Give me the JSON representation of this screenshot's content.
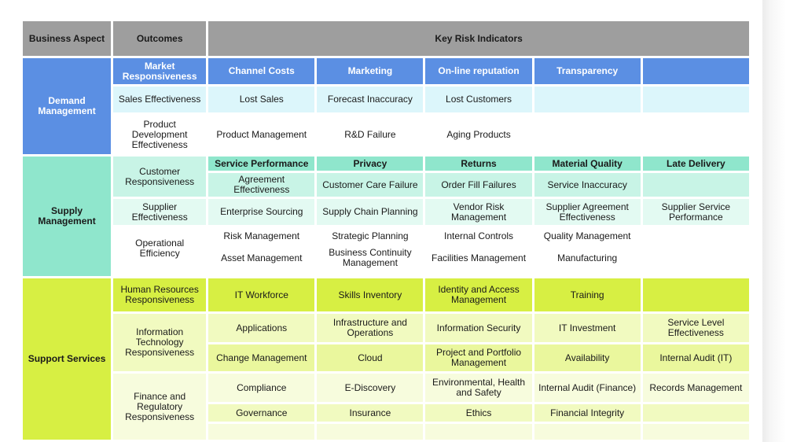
{
  "header": {
    "business_aspect": "Business Aspect",
    "outcomes": "Outcomes",
    "kri": "Key Risk Indicators"
  },
  "demand": {
    "aspect": "Demand Management",
    "rows": [
      {
        "outcome": "Market Responsiveness",
        "cells": [
          "Channel Costs",
          "Marketing",
          "On-line reputation",
          "Transparency",
          ""
        ]
      },
      {
        "outcome": "Sales Effectiveness",
        "cells": [
          "Lost Sales",
          "Forecast Inaccuracy",
          "Lost Customers",
          "",
          ""
        ]
      },
      {
        "outcome": "Product Development Effectiveness",
        "cells": [
          "Product Management",
          "R&D Failure",
          "Aging Products",
          "",
          ""
        ]
      }
    ]
  },
  "supply": {
    "aspect": "Supply Management",
    "customer": {
      "outcome": "Customer Responsiveness",
      "row1": [
        "Service Performance",
        "Privacy",
        "Returns",
        "Material Quality",
        "Late Delivery"
      ],
      "row2": [
        "Agreement Effectiveness",
        "Customer Care Failure",
        "Order Fill Failures",
        "Service Inaccuracy",
        ""
      ]
    },
    "supplier": {
      "outcome": "Supplier Effectiveness",
      "cells": [
        "Enterprise Sourcing",
        "Supply Chain Planning",
        "Vendor Risk Management",
        "Supplier Agreement Effectiveness",
        "Supplier Service Performance"
      ]
    },
    "operational": {
      "outcome": "Operational Efficiency",
      "row1": [
        "Risk Management",
        "Strategic Planning",
        "Internal Controls",
        "Quality Management",
        ""
      ],
      "row2": [
        "Asset Management",
        "Business Continuity Management",
        "Facilities Management",
        "Manufacturing",
        ""
      ]
    }
  },
  "support": {
    "aspect": "Support Services",
    "hr": {
      "outcome": "Human Resources Responsiveness",
      "cells": [
        "IT Workforce",
        "Skills Inventory",
        "Identity and Access Management",
        "Training",
        ""
      ]
    },
    "it": {
      "outcome": "Information Technology Responsiveness",
      "row1": [
        "Applications",
        "Infrastructure and Operations",
        "Information Security",
        "IT Investment",
        "Service Level Effectiveness"
      ],
      "row2": [
        "Change Management",
        "Cloud",
        "Project and Portfolio Management",
        "Availability",
        "Internal Audit (IT)"
      ]
    },
    "finance": {
      "outcome": "Finance and Regulatory Responsiveness",
      "row1": [
        "Compliance",
        "E-Discovery",
        "Environmental, Health and Safety",
        "Internal Audit (Finance)",
        "Records Management"
      ],
      "row2": [
        "Governance",
        "Insurance",
        "Ethics",
        "Financial Integrity",
        ""
      ]
    }
  }
}
